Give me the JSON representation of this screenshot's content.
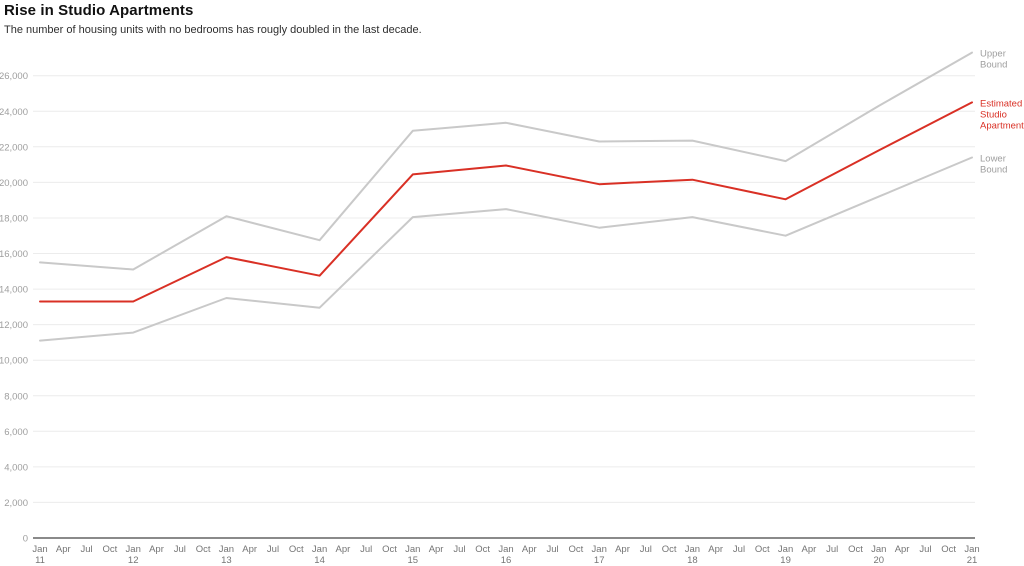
{
  "header": {
    "title": "Rise in Studio Apartments",
    "subtitle": "The number of housing units with no bedrooms has rougly doubled in the last decade."
  },
  "chart_data": {
    "type": "line",
    "title": "Rise in Studio Apartments",
    "subtitle": "The number of housing units with no bedrooms has rougly doubled in the last decade.",
    "categories": [
      "Jan 11",
      "Jan 12",
      "Jan 13",
      "Jan 14",
      "Jan 15",
      "Jan 16",
      "Jan 17",
      "Jan 18",
      "Jan 19",
      "Jan 20",
      "Jan 21"
    ],
    "x_tick_months": [
      "Jan",
      "Apr",
      "Jul",
      "Oct"
    ],
    "x_tick_years": [
      "11",
      "12",
      "13",
      "14",
      "15",
      "16",
      "17",
      "18",
      "19",
      "20",
      "21"
    ],
    "series": [
      {
        "name": "Upper Bound",
        "role": "upper-bound",
        "color": "#c9c9c9",
        "label_color": "#9e9e9e",
        "values": [
          15500,
          15100,
          18100,
          16750,
          22900,
          23350,
          22300,
          22350,
          21200,
          24300,
          27300
        ]
      },
      {
        "name": "Estimated Studio Apartments",
        "role": "estimate",
        "color": "#d93025",
        "label_color": "#d93025",
        "values": [
          13300,
          13300,
          15800,
          14750,
          20450,
          20950,
          19900,
          20150,
          19050,
          21800,
          24500
        ]
      },
      {
        "name": "Lower Bound",
        "role": "lower-bound",
        "color": "#c9c9c9",
        "label_color": "#9e9e9e",
        "values": [
          11100,
          11550,
          13500,
          12950,
          18050,
          18500,
          17450,
          18050,
          17000,
          19200,
          21400
        ]
      }
    ],
    "xlabel": "",
    "ylabel": "",
    "ylim": [
      0,
      27500
    ],
    "yticks": [
      0,
      2000,
      4000,
      6000,
      8000,
      10000,
      12000,
      14000,
      16000,
      18000,
      20000,
      22000,
      24000,
      26000
    ],
    "grid": true,
    "legend_position": "right-end-of-line",
    "colors": {
      "grid_line": "#ececec",
      "axis_line": "#8a8a8a",
      "y_tick_label": "#9e9e9e",
      "x_tick_label": "#757575"
    }
  }
}
